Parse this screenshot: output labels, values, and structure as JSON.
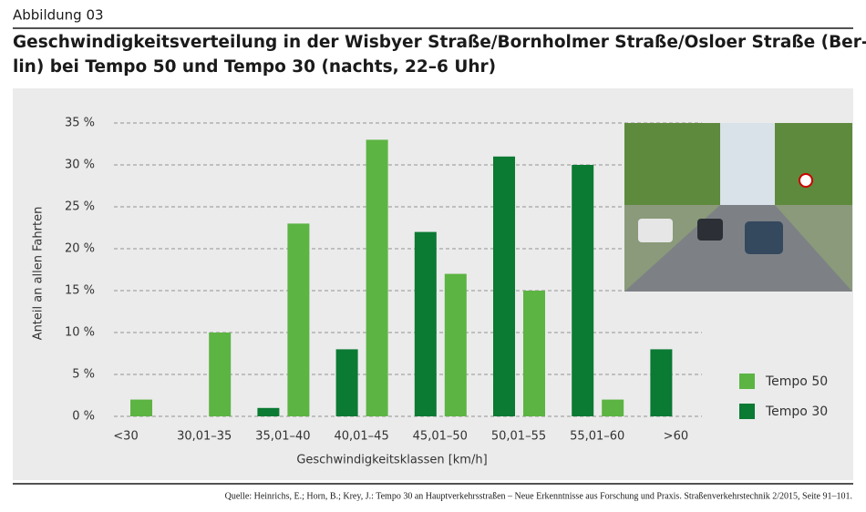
{
  "figure_label": "Abbildung 03",
  "source": "Quelle: Heinrichs, E.; Horn, B.; Krey, J.: Tempo 30 an Hauptverkehrsstraßen – Neue Erkenntnisse aus Forschung und Praxis. Straßenverkehrstechnik 2/2015, Seite 91–101.",
  "chart_data": {
    "type": "bar",
    "title": [
      "Geschwindigkeitsverteilung in der Wisbyer Straße/Bornholmer Straße/Osloer Straße (Ber-",
      "lin) bei Tempo 50 und Tempo 30 (nachts, 22–6 Uhr)"
    ],
    "x_label": "Geschwindigkeitsklassen [km/h]",
    "y_label": "Anteil an allen Fahrten",
    "categories": [
      "<30",
      "30,01–35",
      "35,01–40",
      "40,01–45",
      "45,01–50",
      "50,01–55",
      "55,01–60",
      ">60"
    ],
    "series": [
      {
        "name": "Tempo 50",
        "color": "#5cb443",
        "values": [
          2,
          10,
          23,
          33,
          17,
          15,
          2,
          0
        ]
      },
      {
        "name": "Tempo 30",
        "color": "#0b7a33",
        "values": [
          0,
          0,
          1,
          8,
          22,
          31,
          30,
          8
        ]
      }
    ],
    "ylim": [
      0,
      35
    ],
    "yticks": [
      {
        "value": 0,
        "label": "0 %"
      },
      {
        "value": 5,
        "label": "5 %"
      },
      {
        "value": 10,
        "label": "10 %"
      },
      {
        "value": 15,
        "label": "15 %"
      },
      {
        "value": 20,
        "label": "20 %"
      },
      {
        "value": 25,
        "label": "25 %"
      },
      {
        "value": 30,
        "label": "30 %"
      },
      {
        "value": 35,
        "label": "35 %"
      }
    ],
    "grid": true,
    "legend": "right"
  }
}
